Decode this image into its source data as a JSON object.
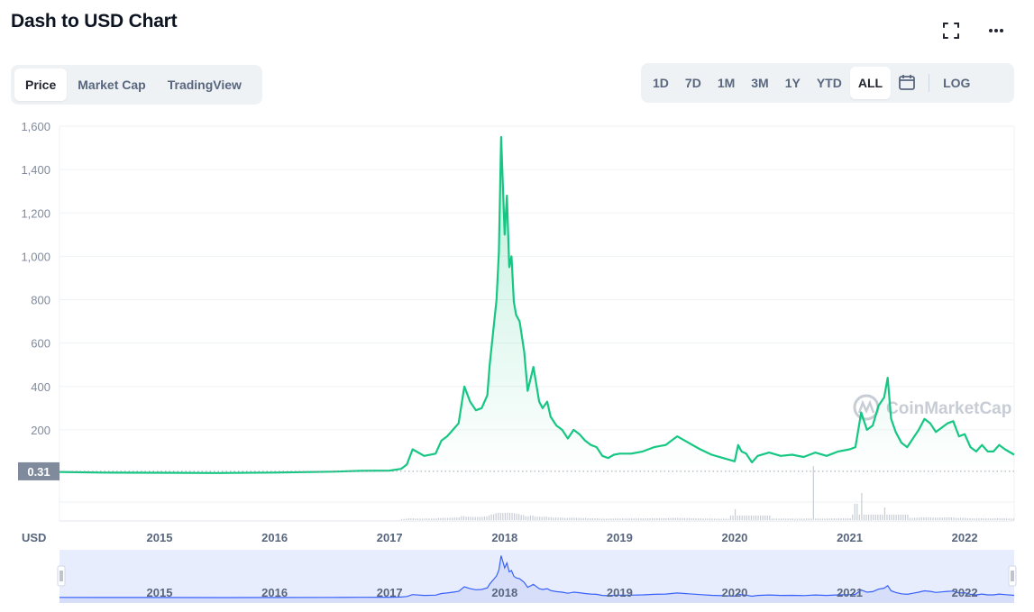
{
  "header": {
    "title": "Dash to USD Chart"
  },
  "icons": {
    "fullscreen": "fullscreen-icon",
    "more": "more-icon",
    "calendar": "calendar-icon"
  },
  "tabs": [
    {
      "label": "Price",
      "active": true
    },
    {
      "label": "Market Cap",
      "active": false
    },
    {
      "label": "TradingView",
      "active": false
    }
  ],
  "ranges": [
    {
      "label": "1D",
      "active": false
    },
    {
      "label": "7D",
      "active": false
    },
    {
      "label": "1M",
      "active": false
    },
    {
      "label": "3M",
      "active": false
    },
    {
      "label": "1Y",
      "active": false
    },
    {
      "label": "YTD",
      "active": false
    },
    {
      "label": "ALL",
      "active": true
    }
  ],
  "log_label": "LOG",
  "currency_label": "USD",
  "watermark": "CoinMarketCap",
  "colors": {
    "line": "#16c784",
    "navigator_line": "#3861fb",
    "navigator_fill": "#e8edfd",
    "volume": "#c7ccd5",
    "grid": "#eff2f5",
    "price_tag": "#808a9d"
  },
  "chart_data": {
    "type": "line",
    "title": "Dash to USD Chart",
    "ylabel": "",
    "xlabel": "",
    "ylim": [
      0,
      1600
    ],
    "y_ticks": [
      200,
      400,
      600,
      800,
      1000,
      1200,
      1400,
      1600
    ],
    "y_tick_labels": [
      "200",
      "400",
      "600",
      "800",
      "1,000",
      "1,200",
      "1,400",
      "1,600"
    ],
    "x_ticks": [
      2015,
      2016,
      2017,
      2018,
      2019,
      2020,
      2021,
      2022
    ],
    "x_tick_labels": [
      "2015",
      "2016",
      "2017",
      "2018",
      "2019",
      "2020",
      "2021",
      "2022"
    ],
    "xlim": [
      2014.13,
      2022.43
    ],
    "reference_price_label": "0.31",
    "reference_price": 0.31,
    "series": [
      {
        "x": [
          2014.13,
          2014.5,
          2015.0,
          2015.5,
          2016.0,
          2016.5,
          2016.75,
          2017.0,
          2017.1,
          2017.15,
          2017.2,
          2017.3,
          2017.4,
          2017.45,
          2017.5,
          2017.55,
          2017.6,
          2017.65,
          2017.7,
          2017.75,
          2017.8,
          2017.85,
          2017.87,
          2017.9,
          2017.93,
          2017.95,
          2017.97,
          2018.0,
          2018.02,
          2018.04,
          2018.06,
          2018.08,
          2018.1,
          2018.13,
          2018.17,
          2018.2,
          2018.25,
          2018.3,
          2018.33,
          2018.37,
          2018.4,
          2018.45,
          2018.5,
          2018.55,
          2018.6,
          2018.65,
          2018.7,
          2018.75,
          2018.8,
          2018.85,
          2018.9,
          2018.95,
          2019.0,
          2019.1,
          2019.2,
          2019.3,
          2019.4,
          2019.45,
          2019.5,
          2019.6,
          2019.7,
          2019.8,
          2019.9,
          2020.0,
          2020.03,
          2020.06,
          2020.1,
          2020.15,
          2020.2,
          2020.3,
          2020.4,
          2020.5,
          2020.6,
          2020.7,
          2020.8,
          2020.9,
          2021.0,
          2021.05,
          2021.1,
          2021.15,
          2021.2,
          2021.25,
          2021.3,
          2021.33,
          2021.36,
          2021.4,
          2021.45,
          2021.5,
          2021.55,
          2021.6,
          2021.65,
          2021.7,
          2021.75,
          2021.8,
          2021.85,
          2021.9,
          2021.95,
          2022.0,
          2022.05,
          2022.1,
          2022.15,
          2022.2,
          2022.25,
          2022.3,
          2022.35,
          2022.43
        ],
        "y": [
          6,
          3,
          2,
          1,
          3,
          7,
          11,
          12,
          20,
          40,
          110,
          80,
          90,
          150,
          170,
          200,
          230,
          400,
          330,
          290,
          300,
          360,
          500,
          650,
          800,
          1020,
          1550,
          1100,
          1280,
          950,
          1000,
          790,
          730,
          700,
          560,
          380,
          490,
          330,
          300,
          330,
          260,
          220,
          200,
          160,
          200,
          180,
          150,
          130,
          120,
          80,
          70,
          85,
          90,
          90,
          100,
          120,
          130,
          150,
          170,
          140,
          110,
          85,
          70,
          55,
          130,
          100,
          90,
          50,
          80,
          95,
          80,
          85,
          75,
          95,
          80,
          100,
          110,
          120,
          280,
          200,
          220,
          310,
          350,
          440,
          250,
          190,
          140,
          120,
          160,
          200,
          250,
          230,
          190,
          210,
          230,
          240,
          170,
          180,
          120,
          100,
          130,
          100,
          100,
          130,
          110,
          85
        ]
      }
    ]
  },
  "navigator": {
    "x_tick_labels": [
      "2015",
      "2016",
      "2017",
      "2018",
      "2019",
      "2020",
      "2021",
      "2022"
    ]
  }
}
